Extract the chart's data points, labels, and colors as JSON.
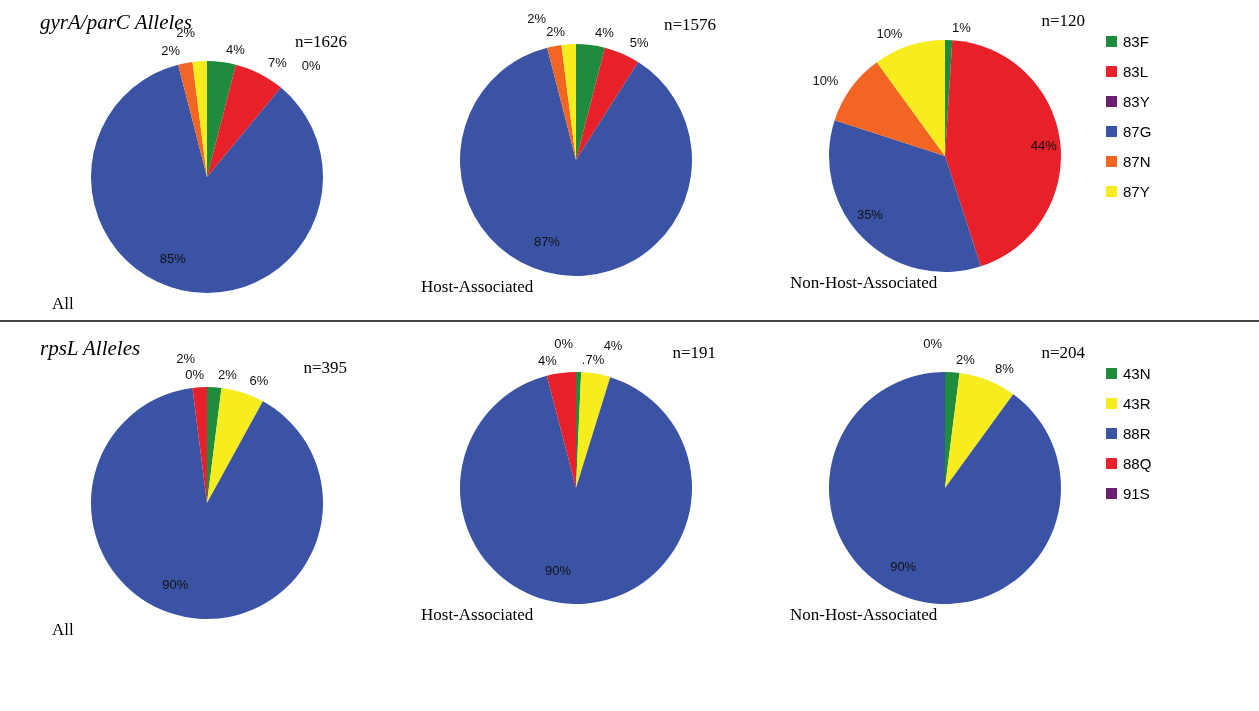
{
  "chart_data": [
    {
      "type": "pie",
      "title": "gyrA/parC Alleles",
      "subtitle": "n=1626",
      "annotations": [
        "All"
      ],
      "categories": [
        null,
        null,
        null,
        null,
        null,
        null
      ],
      "values": [
        4,
        7,
        0,
        85,
        2,
        2
      ],
      "colors": [
        "#1e8c3c",
        "#e8202a",
        "#6b1f6e",
        "#3a53a4",
        "#f26522",
        "#f7ec1e"
      ],
      "value_labels": [
        "4%",
        "7%",
        "0%",
        "85%",
        "2%",
        "2%"
      ],
      "legend": false
    },
    {
      "type": "pie",
      "subtitle": "n=1576",
      "annotations": [
        "Host-Associated"
      ],
      "categories": [
        null,
        null,
        null,
        null,
        null,
        null
      ],
      "values": [
        4,
        5,
        0,
        87,
        2,
        2
      ],
      "colors": [
        "#1e8c3c",
        "#e8202a",
        "#6b1f6e",
        "#3a53a4",
        "#f26522",
        "#f7ec1e"
      ],
      "value_labels": [
        "4%",
        "5%",
        null,
        "87%",
        "2%",
        "2%"
      ],
      "legend": false
    },
    {
      "type": "pie",
      "subtitle": "n=120",
      "annotations": [
        "Non-Host-Associated"
      ],
      "categories": [
        "83F",
        "83L",
        "83Y",
        "87G",
        "87N",
        "87Y"
      ],
      "values": [
        1,
        44,
        0,
        35,
        10,
        10
      ],
      "colors": [
        "#1e8c3c",
        "#e8202a",
        "#6b1f6e",
        "#3a53a4",
        "#f26522",
        "#f7ec1e"
      ],
      "value_labels": [
        "1%",
        "44%",
        null,
        "35%",
        "10%",
        "10%"
      ],
      "legend": "right"
    },
    {
      "type": "pie",
      "title": "rpsL Alleles",
      "subtitle": "n=395",
      "annotations": [
        "All"
      ],
      "categories": [
        null,
        null,
        null,
        null,
        null
      ],
      "values": [
        2,
        6,
        90,
        2,
        0
      ],
      "colors": [
        "#1e8c3c",
        "#f7ec1e",
        "#3a53a4",
        "#e8202a",
        "#6b1f6e"
      ],
      "value_labels": [
        "2%",
        "6%",
        "90%",
        "2%",
        "0%"
      ],
      "legend": false
    },
    {
      "type": "pie",
      "subtitle": "n=191",
      "annotations": [
        "Host-Associated"
      ],
      "categories": [
        null,
        null,
        null,
        null,
        null
      ],
      "values": [
        0.7,
        4,
        90,
        4,
        0
      ],
      "colors": [
        "#1e8c3c",
        "#f7ec1e",
        "#3a53a4",
        "#e8202a",
        "#6b1f6e"
      ],
      "value_labels": [
        ".7%",
        "4%",
        "90%",
        "4%",
        "0%"
      ],
      "legend": false
    },
    {
      "type": "pie",
      "subtitle": "n=204",
      "annotations": [
        "Non-Host-Associated"
      ],
      "categories": [
        "43N",
        "43R",
        "88R",
        "88Q",
        "91S"
      ],
      "values": [
        2,
        8,
        90,
        0,
        0
      ],
      "colors": [
        "#1e8c3c",
        "#f7ec1e",
        "#3a53a4",
        "#e8202a",
        "#6b1f6e"
      ],
      "value_labels": [
        "2%",
        "8%",
        "90%",
        null,
        "0%"
      ],
      "legend": "right"
    }
  ]
}
